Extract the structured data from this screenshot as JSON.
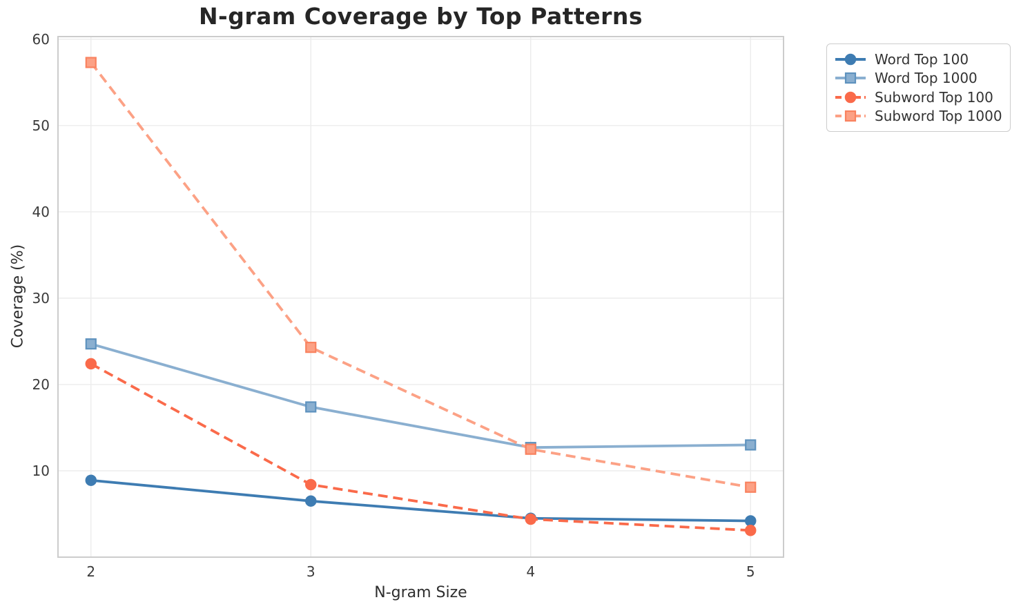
{
  "chart_data": {
    "type": "line",
    "title": "N-gram Coverage by Top Patterns",
    "xlabel": "N-gram Size",
    "ylabel": "Coverage (%)",
    "x": [
      2,
      3,
      4,
      5
    ],
    "xticks": [
      2,
      3,
      4,
      5
    ],
    "yticks": [
      10,
      20,
      30,
      40,
      50,
      60
    ],
    "xlim": [
      1.85,
      5.15
    ],
    "ylim": [
      0,
      60.3
    ],
    "grid": true,
    "legend_position": "outside-top-right",
    "series": [
      {
        "name": "Word Top 100",
        "values": [
          8.9,
          6.5,
          4.5,
          4.2
        ],
        "color": "#3E7CB2",
        "edge_color": "#3E7CB2",
        "line_style": "solid",
        "marker": "circle"
      },
      {
        "name": "Word Top 1000",
        "values": [
          24.7,
          17.4,
          12.7,
          13.0
        ],
        "color": "#8AAFD0",
        "edge_color": "#5E92BE",
        "line_style": "solid",
        "marker": "square"
      },
      {
        "name": "Subword Top 100",
        "values": [
          22.4,
          8.4,
          4.4,
          3.1
        ],
        "color": "#FA6A4A",
        "edge_color": "#FA6A4A",
        "line_style": "dashed",
        "marker": "circle"
      },
      {
        "name": "Subword Top 1000",
        "values": [
          57.3,
          24.3,
          12.5,
          8.1
        ],
        "color": "#FCA185",
        "edge_color": "#F9825F",
        "line_style": "dashed",
        "marker": "square"
      }
    ],
    "style": {
      "grid_color": "#ECECEC",
      "spine_color": "#CCCCCC",
      "tick_color": "#3a3a3a",
      "background": "#FFFFFF"
    }
  }
}
